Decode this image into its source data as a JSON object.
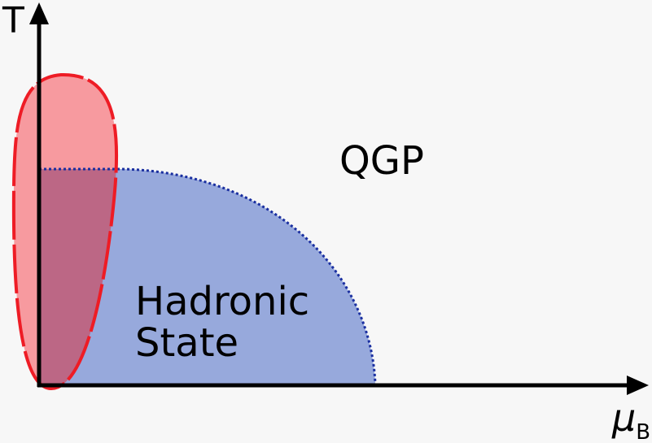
{
  "axes": {
    "y_label": "T",
    "x_label_symbol": "μ",
    "x_label_subscript": "B"
  },
  "regions": {
    "qgp_label": "QGP",
    "hadronic_line1": "Hadronic",
    "hadronic_line2": "State"
  },
  "colors": {
    "background": "#f7f7f7",
    "axis": "#000000",
    "hadronic_fill": "#97a9dc",
    "hadronic_boundary": "#1a2fa0",
    "experiment_fill": "#f79a9f",
    "experiment_outline": "#ee1c25",
    "overlap_fill": "#bc6785"
  }
}
